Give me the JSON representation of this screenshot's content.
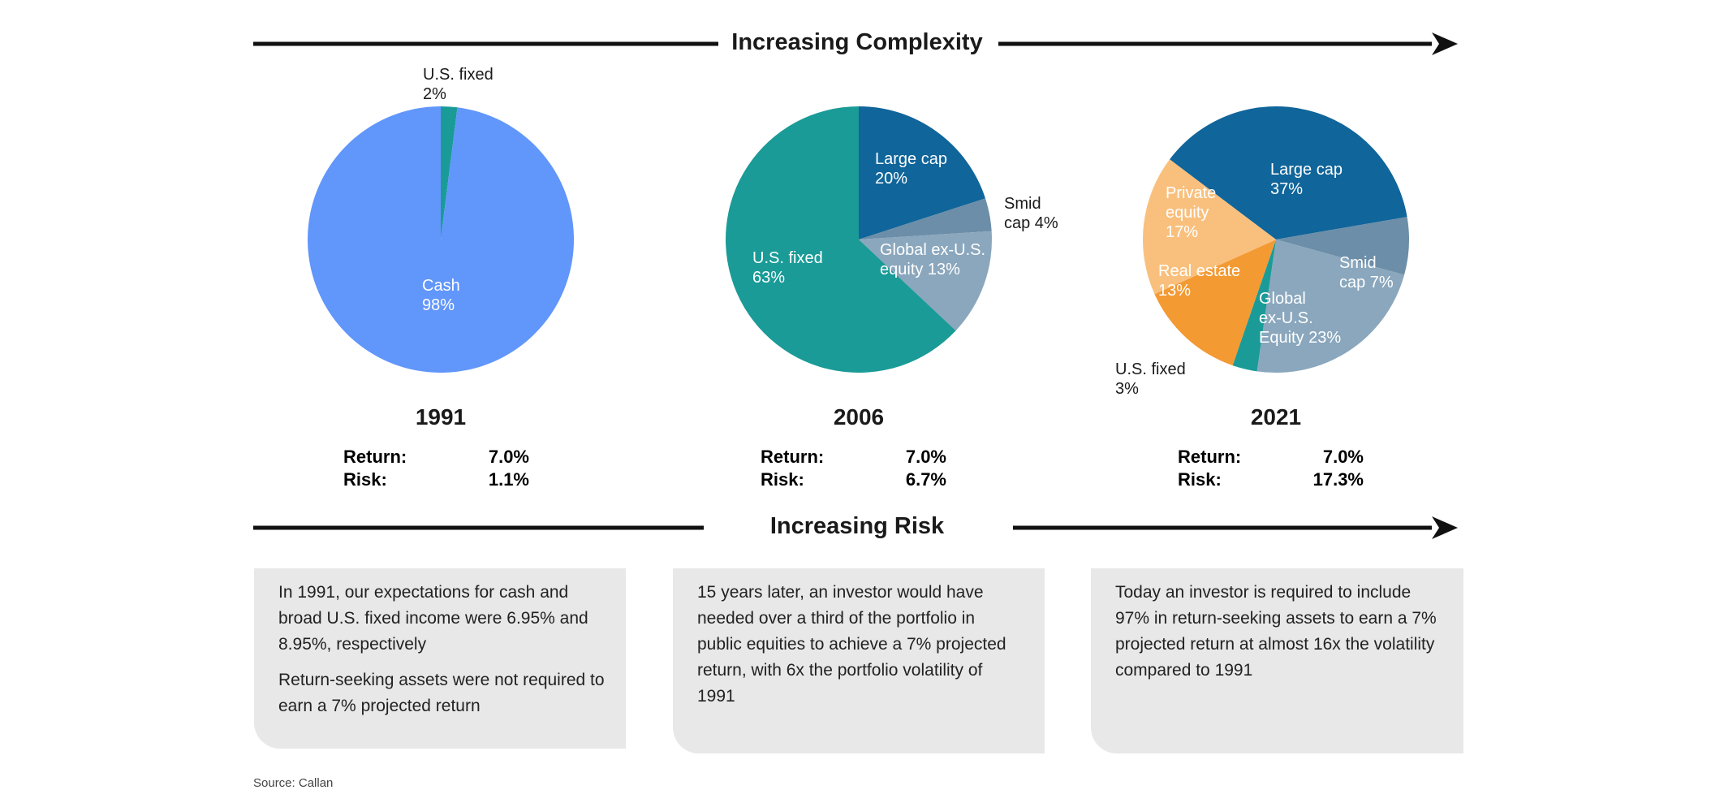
{
  "header": {
    "top_arrow_label": "Increasing Complexity",
    "bottom_arrow_label": "Increasing Risk"
  },
  "chart_data": [
    {
      "type": "pie",
      "title": "1991",
      "slices": [
        {
          "label": "U.S. fixed",
          "value": 2,
          "color": "#1a9b97"
        },
        {
          "label": "Cash",
          "value": 98,
          "color": "#6196fb"
        }
      ],
      "stats": {
        "return_label": "Return:",
        "return_value": "7.0%",
        "risk_label": "Risk:",
        "risk_value": "1.1%"
      }
    },
    {
      "type": "pie",
      "title": "2006",
      "slices": [
        {
          "label": "Large cap",
          "value": 20,
          "color": "#10659a"
        },
        {
          "label": "Smid cap",
          "value": 4,
          "color": "#6c8ea8"
        },
        {
          "label": "Global ex-U.S. equity",
          "value": 13,
          "color": "#8aa7bd"
        },
        {
          "label": "U.S. fixed",
          "value": 63,
          "color": "#1a9b97"
        }
      ],
      "stats": {
        "return_label": "Return:",
        "return_value": "7.0%",
        "risk_label": "Risk:",
        "risk_value": "6.7%"
      }
    },
    {
      "type": "pie",
      "title": "2021",
      "slices": [
        {
          "label": "Large cap",
          "value": 37,
          "color": "#10659a"
        },
        {
          "label": "Smid cap",
          "value": 7,
          "color": "#6c8ea8"
        },
        {
          "label": "Global ex-U.S. Equity",
          "value": 23,
          "color": "#8aa7bd"
        },
        {
          "label": "U.S. fixed",
          "value": 3,
          "color": "#1a9b97"
        },
        {
          "label": "Real estate",
          "value": 13,
          "color": "#f39a33"
        },
        {
          "label": "Private equity",
          "value": 17,
          "color": "#f9c07d"
        }
      ],
      "stats": {
        "return_label": "Return:",
        "return_value": "7.0%",
        "risk_label": "Risk:",
        "risk_value": "17.3%"
      }
    }
  ],
  "slice_labels": {
    "p1": [
      {
        "lines": [
          "U.S. fixed",
          "2%"
        ],
        "dark": true
      },
      {
        "lines": [
          "Cash",
          "98%"
        ],
        "dark": false
      }
    ],
    "p2": [
      {
        "lines": [
          "Large cap",
          "20%"
        ],
        "dark": false
      },
      {
        "lines": [
          "Smid",
          "cap 4%"
        ],
        "dark": true
      },
      {
        "lines": [
          "Global ex-U.S.",
          "equity 13%"
        ],
        "dark": false
      },
      {
        "lines": [
          "U.S. fixed",
          "63%"
        ],
        "dark": false
      }
    ],
    "p3": [
      {
        "lines": [
          "Large cap",
          "37%"
        ],
        "dark": false
      },
      {
        "lines": [
          "Smid",
          "cap 7%"
        ],
        "dark": false
      },
      {
        "lines": [
          "Global",
          "ex-U.S.",
          "Equity 23%"
        ],
        "dark": false
      },
      {
        "lines": [
          "U.S. fixed",
          "3%"
        ],
        "dark": true
      },
      {
        "lines": [
          "Real estate",
          "13%"
        ],
        "dark": false
      },
      {
        "lines": [
          "Private",
          "equity",
          "17%"
        ],
        "dark": false
      }
    ]
  },
  "notes": [
    [
      "In 1991, our expectations for cash and broad U.S. fixed income were 6.95% and 8.95%, respectively",
      "Return-seeking assets were not required to earn a 7% projected return"
    ],
    [
      "15 years later, an investor would have needed over a third of the portfolio in public equities to achieve a 7% projected return, with 6x the portfolio volatility of 1991"
    ],
    [
      "Today an investor is required to include 97% in return-seeking assets to earn a 7% projected return at almost 16x the volatility compared to 1991"
    ]
  ],
  "source": "Source: Callan"
}
